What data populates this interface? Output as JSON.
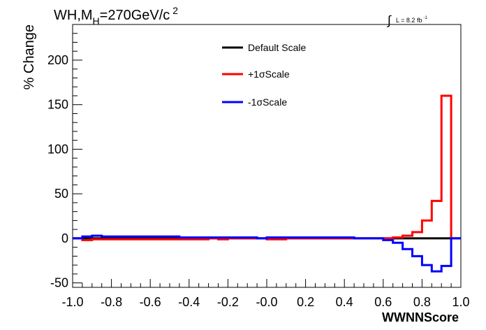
{
  "chart_data": {
    "type": "line",
    "title_main": "WH,M",
    "title_sub": "H",
    "title_rest": "=270GeV/c",
    "title_sup": "2",
    "lumi_integral": "∫",
    "lumi_text": "L = 8.2 fb",
    "lumi_sup": "-1",
    "xlabel": "WWNNScore",
    "ylabel": "% Change",
    "xlim": [
      -1.0,
      1.0
    ],
    "ylim": [
      -55,
      240
    ],
    "x_ticks": [
      -1.0,
      -0.8,
      -0.6,
      -0.4,
      -0.2,
      0.0,
      0.2,
      0.4,
      0.6,
      0.8,
      1.0
    ],
    "x_tick_labels": [
      "-1.0",
      "-0.8",
      "-0.6",
      "-0.4",
      "-0.2",
      "-0.0",
      "0.2",
      "0.4",
      "0.6",
      "0.8",
      "1.0"
    ],
    "y_ticks": [
      -50,
      0,
      50,
      100,
      150,
      200
    ],
    "y_tick_labels": [
      "-50",
      "0",
      "50",
      "100",
      "150",
      "200"
    ],
    "bin_edges": [
      -1.0,
      -0.95,
      -0.9,
      -0.85,
      -0.8,
      -0.75,
      -0.7,
      -0.65,
      -0.6,
      -0.55,
      -0.5,
      -0.45,
      -0.4,
      -0.35,
      -0.3,
      -0.25,
      -0.2,
      -0.15,
      -0.1,
      -0.05,
      0.0,
      0.05,
      0.1,
      0.15,
      0.2,
      0.25,
      0.3,
      0.35,
      0.4,
      0.45,
      0.5,
      0.55,
      0.6,
      0.65,
      0.7,
      0.75,
      0.8,
      0.85,
      0.9,
      0.95,
      1.0
    ],
    "series": [
      {
        "name": "Default Scale",
        "color": "#000000",
        "values": [
          0,
          0,
          0,
          0,
          0,
          0,
          0,
          0,
          0,
          0,
          0,
          0,
          0,
          0,
          0,
          0,
          0,
          0,
          0,
          0,
          0,
          0,
          0,
          0,
          0,
          0,
          0,
          0,
          0,
          0,
          0,
          0,
          0,
          0,
          0,
          0,
          0,
          0,
          0,
          0
        ]
      },
      {
        "name": "+1σScale",
        "color": "#ff0000",
        "values": [
          0,
          -2,
          -1,
          -1,
          -1,
          -1,
          -1,
          -1,
          -1,
          -1,
          -1,
          -1,
          -1,
          -1,
          0,
          -1,
          0,
          0,
          0,
          0,
          -1,
          -1,
          0,
          0,
          0,
          0,
          0,
          0,
          0,
          0,
          0,
          0,
          0,
          1,
          3,
          7,
          20,
          42,
          160,
          0
        ]
      },
      {
        "name": "-1σScale",
        "color": "#0000ff",
        "values": [
          0,
          2,
          3,
          2,
          2,
          2,
          2,
          2,
          2,
          2,
          2,
          1,
          1,
          1,
          1,
          1,
          1,
          1,
          1,
          0,
          1,
          1,
          1,
          1,
          1,
          1,
          1,
          1,
          1,
          0,
          0,
          0,
          -2,
          -5,
          -12,
          -20,
          -30,
          -37,
          -31,
          0
        ]
      }
    ],
    "legend_position": "top-center"
  }
}
